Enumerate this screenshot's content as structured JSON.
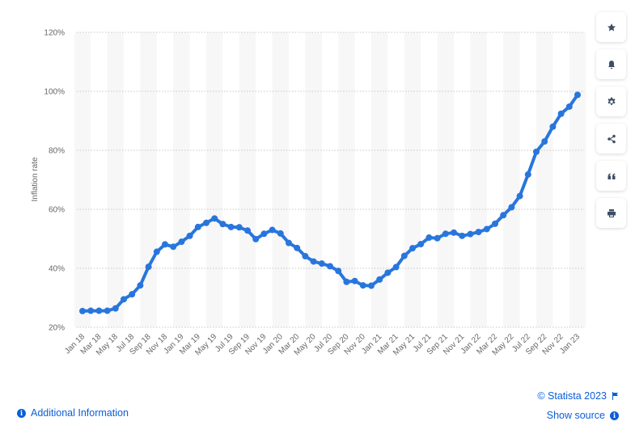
{
  "chart_data": {
    "type": "line",
    "title": "",
    "xlabel": "",
    "ylabel": "Inflation rate",
    "ylim": [
      20,
      120
    ],
    "yticks": [
      "20%",
      "40%",
      "60%",
      "80%",
      "100%",
      "120%"
    ],
    "grid": true,
    "legend": "none",
    "x": [
      "Jan 18",
      "Feb 18",
      "Mar 18",
      "Apr 18",
      "May 18",
      "Jun 18",
      "Jul 18",
      "Aug 18",
      "Sep 18",
      "Oct 18",
      "Nov 18",
      "Dec 18",
      "Jan 19",
      "Feb 19",
      "Mar 19",
      "Apr 19",
      "May 19",
      "Jun 19",
      "Jul 19",
      "Aug 19",
      "Sep 19",
      "Oct 19",
      "Nov 19",
      "Dec 19",
      "Jan 20",
      "Feb 20",
      "Mar 20",
      "Apr 20",
      "May 20",
      "Jun 20",
      "Jul 20",
      "Aug 20",
      "Sep 20",
      "Oct 20",
      "Nov 20",
      "Dec 20",
      "Jan 21",
      "Feb 21",
      "Mar 21",
      "Apr 21",
      "May 21",
      "Jun 21",
      "Jul 21",
      "Aug 21",
      "Sep 21",
      "Oct 21",
      "Nov 21",
      "Dec 21",
      "Jan 22",
      "Feb 22",
      "Mar 22",
      "Apr 22",
      "May 22",
      "Jun 22",
      "Jul 22",
      "Aug 22",
      "Sep 22",
      "Oct 22",
      "Nov 22",
      "Dec 22",
      "Jan 23"
    ],
    "xtick_labels": [
      "Jan 18",
      "Mar 18",
      "May 18",
      "Jul 18",
      "Sep 18",
      "Nov 18",
      "Jan 19",
      "Mar 19",
      "May 19",
      "Jul 19",
      "Sep 19",
      "Nov 19",
      "Jan 20",
      "Mar 20",
      "May 20",
      "Jul 20",
      "Sep 20",
      "Nov 20",
      "Jan 21",
      "Mar 21",
      "May 21",
      "Jul 21",
      "Sep 21",
      "Nov 21",
      "Jan 22",
      "Mar 22",
      "May 22",
      "Jul 22",
      "Sep 22",
      "Nov 22",
      "Jan 23"
    ],
    "series": [
      {
        "name": "Inflation rate",
        "color": "#2876dd",
        "values": [
          25.5,
          25.6,
          25.6,
          25.6,
          26.4,
          29.5,
          31.2,
          34.2,
          40.5,
          45.6,
          48.1,
          47.3,
          49.0,
          51.0,
          54.0,
          55.4,
          56.9,
          55.0,
          54.0,
          53.9,
          52.8,
          49.9,
          51.7,
          53.0,
          51.8,
          48.6,
          46.9,
          44.1,
          42.3,
          41.6,
          40.7,
          39.1,
          35.4,
          35.7,
          34.2,
          34.1,
          36.2,
          38.5,
          40.4,
          44.2,
          46.8,
          48.2,
          50.4,
          50.2,
          51.7,
          52.1,
          51.0,
          51.6,
          52.3,
          53.3,
          55.1,
          58.0,
          60.7,
          64.5,
          71.8,
          79.5,
          83.0,
          88.0,
          92.4,
          94.8,
          98.8
        ]
      }
    ]
  },
  "side_toolbar": [
    {
      "icon": "star-icon",
      "label": "Favorite"
    },
    {
      "icon": "bell-icon",
      "label": "Notifications"
    },
    {
      "icon": "gear-icon",
      "label": "Settings"
    },
    {
      "icon": "share-icon",
      "label": "Share"
    },
    {
      "icon": "quote-icon",
      "label": "Cite"
    },
    {
      "icon": "print-icon",
      "label": "Print"
    }
  ],
  "footer": {
    "additional_info": "Additional Information",
    "copyright": "© Statista 2023",
    "show_source": "Show source"
  },
  "colors": {
    "line": "#2876dd",
    "link": "#0b5ed7",
    "icon": "#3d4f66",
    "band": "#f7f7f7",
    "grid": "#c8c8c8"
  }
}
